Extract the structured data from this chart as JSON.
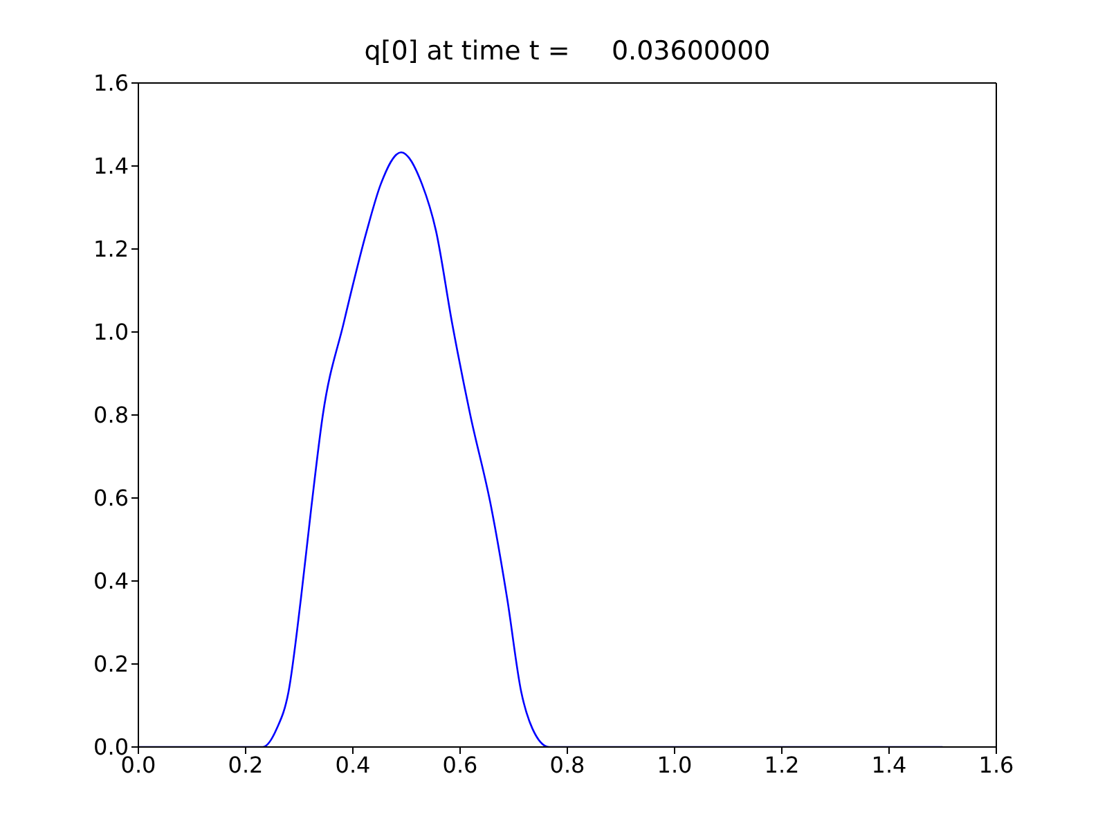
{
  "chart_data": {
    "type": "line",
    "title": "q[0] at time t =     0.03600000",
    "x": [
      0.0,
      0.232,
      0.258,
      0.28,
      0.303,
      0.3226,
      0.344,
      0.383,
      0.426,
      0.452,
      0.49,
      0.529,
      0.555,
      0.585,
      0.619,
      0.658,
      0.688,
      0.714,
      0.735,
      0.766,
      1.5
    ],
    "series": [
      {
        "color": "#0000ff",
        "values": [
          0.0,
          0.0,
          0.044,
          0.133,
          0.356,
          0.578,
          0.8,
          1.022,
          1.244,
          1.356,
          1.433,
          1.356,
          1.244,
          1.022,
          0.8,
          0.578,
          0.356,
          0.133,
          0.044,
          0.0,
          0.0
        ]
      }
    ],
    "xlim": [
      0,
      1.6
    ],
    "ylim": [
      0,
      1.6
    ],
    "xticks": [
      {
        "value": 0,
        "label": "0.0"
      },
      0.2,
      0.4,
      0.6,
      0.8,
      {
        "value": 1,
        "label": "1.0"
      },
      1.2,
      1.4,
      1.6
    ],
    "yticks": [
      {
        "value": 0,
        "label": "0.0"
      },
      0.2,
      0.4,
      0.6,
      0.8,
      {
        "value": 1,
        "label": "1.0"
      },
      1.2,
      1.4,
      1.6
    ],
    "grid": false,
    "legend": false,
    "marker": "none",
    "line_style": "solid"
  }
}
